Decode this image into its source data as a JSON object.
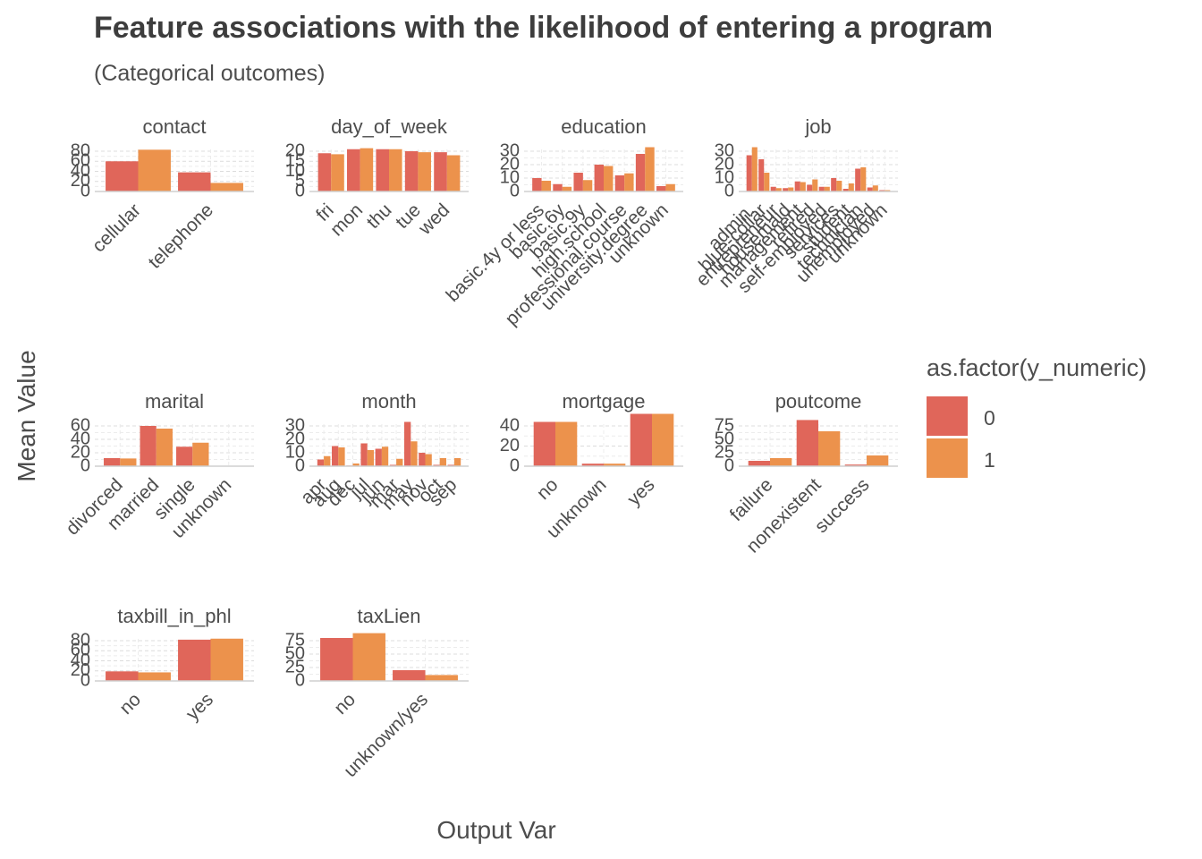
{
  "title": "Feature associations with the likelihood of entering a program",
  "subtitle": "(Categorical outcomes)",
  "y_axis_title": "Mean Value",
  "x_axis_title": "Output Var",
  "legend": {
    "title": "as.factor(y_numeric)",
    "items": [
      {
        "label": "0",
        "color": "#E0665A"
      },
      {
        "label": "1",
        "color": "#EC924C"
      }
    ]
  },
  "chart_data": {
    "type": "bar",
    "facets": [
      {
        "name": "contact",
        "ticks": [
          "0",
          "20",
          "40",
          "60",
          "80"
        ],
        "ymax": 80,
        "categories": [
          "cellular",
          "telephone"
        ],
        "series": [
          {
            "name": "0",
            "values": [
              60,
              38
            ]
          },
          {
            "name": "1",
            "values": [
              83,
              17
            ]
          }
        ]
      },
      {
        "name": "day_of_week",
        "ticks": [
          "0",
          "5",
          "10",
          "15",
          "20"
        ],
        "ymax": 20,
        "categories": [
          "fri",
          "mon",
          "thu",
          "tue",
          "wed"
        ],
        "series": [
          {
            "name": "0",
            "values": [
              19,
              21,
              21,
              20,
              19.5
            ]
          },
          {
            "name": "1",
            "values": [
              18.5,
              21.5,
              21,
              19.5,
              18
            ]
          }
        ]
      },
      {
        "name": "education",
        "ticks": [
          "0",
          "10",
          "20",
          "30"
        ],
        "ymax": 30,
        "categories": [
          "basic.4y or less",
          "basic.6y",
          "basic.9y",
          "high.school",
          "professional.course",
          "university.degree",
          "unknown"
        ],
        "series": [
          {
            "name": "0",
            "values": [
              10,
              5.5,
              14,
              20,
              12,
              28,
              4
            ]
          },
          {
            "name": "1",
            "values": [
              8,
              3.5,
              8.5,
              19,
              13.5,
              33,
              5.5
            ]
          }
        ]
      },
      {
        "name": "job",
        "ticks": [
          "0",
          "10",
          "20",
          "30"
        ],
        "ymax": 30,
        "categories": [
          "admin.",
          "blue-collar",
          "entrepreneur",
          "housemaid",
          "management",
          "retired",
          "self-employed",
          "services",
          "student",
          "technician",
          "unemployed",
          "unknown"
        ],
        "series": [
          {
            "name": "0",
            "values": [
              27,
              24,
              3.5,
              2.5,
              7.5,
              5,
              3.5,
              10,
              2,
              17,
              3,
              1
            ]
          },
          {
            "name": "1",
            "values": [
              33,
              14,
              2.5,
              3,
              7,
              9,
              3.5,
              8,
              6,
              18,
              4.5,
              1
            ]
          }
        ]
      },
      {
        "name": "marital",
        "ticks": [
          "0",
          "20",
          "40",
          "60"
        ],
        "ymax": 60,
        "categories": [
          "divorced",
          "married",
          "single",
          "unknown"
        ],
        "series": [
          {
            "name": "0",
            "values": [
              12,
              60,
              29,
              0.5
            ]
          },
          {
            "name": "1",
            "values": [
              11.5,
              56,
              35,
              0.5
            ]
          }
        ]
      },
      {
        "name": "month",
        "ticks": [
          "0",
          "10",
          "20",
          "30"
        ],
        "ymax": 30,
        "categories": [
          "apr",
          "aug",
          "dec",
          "jul",
          "jun",
          "mar",
          "may",
          "nov",
          "oct",
          "sep"
        ],
        "series": [
          {
            "name": "0",
            "values": [
              5,
              15,
              0.5,
              17,
              13,
              1,
              33,
              10,
              1,
              1
            ]
          },
          {
            "name": "1",
            "values": [
              7.5,
              14,
              2,
              12,
              14.5,
              5.5,
              18.5,
              9,
              6,
              6
            ]
          }
        ]
      },
      {
        "name": "mortgage",
        "ticks": [
          "0",
          "20",
          "40"
        ],
        "ymax": 40,
        "categories": [
          "no",
          "unknown",
          "yes"
        ],
        "series": [
          {
            "name": "0",
            "values": [
              44,
              2.5,
              52
            ]
          },
          {
            "name": "1",
            "values": [
              44,
              2.5,
              52
            ]
          }
        ]
      },
      {
        "name": "poutcome",
        "ticks": [
          "0",
          "25",
          "50",
          "75"
        ],
        "ymax": 75,
        "categories": [
          "failure",
          "nonexistent",
          "success"
        ],
        "series": [
          {
            "name": "0",
            "values": [
              10,
              86,
              3
            ]
          },
          {
            "name": "1",
            "values": [
              15,
              65,
              20
            ]
          }
        ]
      },
      {
        "name": "taxbill_in_phl",
        "ticks": [
          "0",
          "20",
          "40",
          "60",
          "80"
        ],
        "ymax": 80,
        "categories": [
          "no",
          "yes"
        ],
        "series": [
          {
            "name": "0",
            "values": [
              19,
              82
            ]
          },
          {
            "name": "1",
            "values": [
              17,
              84
            ]
          }
        ]
      },
      {
        "name": "taxLien",
        "ticks": [
          "0",
          "25",
          "50",
          "75"
        ],
        "ymax": 75,
        "categories": [
          "no",
          "unknown/yes"
        ],
        "series": [
          {
            "name": "0",
            "values": [
              80,
              20
            ]
          },
          {
            "name": "1",
            "values": [
              89,
              11
            ]
          }
        ]
      }
    ]
  }
}
